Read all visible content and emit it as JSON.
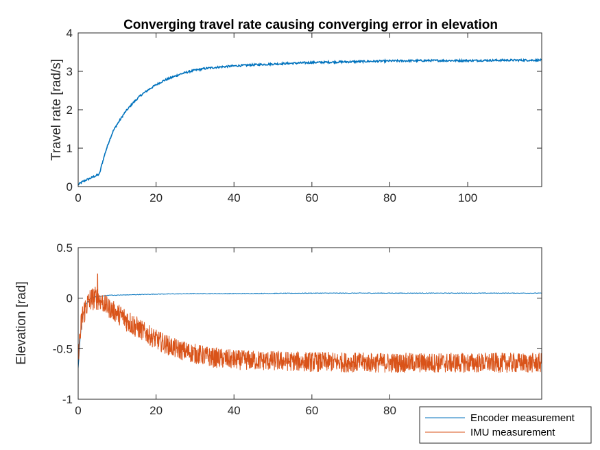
{
  "colors": {
    "series_blue": "#0072BD",
    "series_orange": "#D95319",
    "axis": "#262626",
    "background": "#ffffff"
  },
  "chart_data": [
    {
      "type": "line",
      "title": "Converging travel rate causing converging error in elevation",
      "xlabel": "",
      "ylabel": "Travel rate [rad/s]",
      "xlim": [
        0,
        119
      ],
      "ylim": [
        0,
        4
      ],
      "xticks": [
        0,
        20,
        40,
        60,
        80,
        100
      ],
      "xtick_labels": [
        "0",
        "20",
        "40",
        "60",
        "80",
        "100"
      ],
      "yticks": [
        0,
        1,
        2,
        3,
        4
      ],
      "ytick_labels": [
        "0",
        "1",
        "2",
        "3",
        "4"
      ],
      "grid": false,
      "series": [
        {
          "color": "#0072BD",
          "x": [
            0,
            1,
            2,
            3,
            4,
            5,
            5.5,
            6,
            7,
            8,
            9,
            10,
            12,
            14,
            16,
            18,
            20,
            22,
            24,
            26,
            28,
            30,
            33,
            36,
            40,
            45,
            50,
            55,
            60,
            70,
            80,
            90,
            100,
            110,
            119
          ],
          "y": [
            0.05,
            0.12,
            0.17,
            0.21,
            0.26,
            0.3,
            0.33,
            0.55,
            0.9,
            1.2,
            1.45,
            1.62,
            1.93,
            2.17,
            2.37,
            2.52,
            2.65,
            2.76,
            2.84,
            2.92,
            2.98,
            3.03,
            3.08,
            3.11,
            3.14,
            3.17,
            3.19,
            3.21,
            3.23,
            3.25,
            3.27,
            3.28,
            3.28,
            3.29,
            3.29
          ]
        }
      ]
    },
    {
      "type": "line",
      "title": "",
      "xlabel": "",
      "ylabel": "Elevation [rad]",
      "xlim": [
        0,
        119
      ],
      "ylim": [
        -1,
        0.5
      ],
      "xticks": [
        0,
        20,
        40,
        60,
        80
      ],
      "xtick_labels": [
        "0",
        "20",
        "40",
        "60",
        "80"
      ],
      "yticks": [
        -1,
        -0.5,
        0,
        0.5
      ],
      "ytick_labels": [
        "-1",
        "-0.5",
        "0",
        "0.5"
      ],
      "grid": false,
      "legend_position": "bottom-right",
      "series": [
        {
          "name": "Encoder measurement",
          "color": "#0072BD",
          "x": [
            0,
            0.5,
            1,
            2,
            3,
            4,
            6,
            8,
            10,
            15,
            20,
            30,
            40,
            60,
            80,
            100,
            119
          ],
          "y": [
            -0.7,
            -0.4,
            -0.2,
            -0.06,
            -0.01,
            0.01,
            0.02,
            0.03,
            0.03,
            0.035,
            0.04,
            0.045,
            0.045,
            0.05,
            0.05,
            0.05,
            0.05
          ]
        },
        {
          "name": "IMU measurement",
          "color": "#D95319",
          "x": [
            0,
            1,
            2,
            3,
            4,
            5,
            6,
            7,
            8,
            10,
            12,
            14,
            16,
            18,
            20,
            25,
            30,
            35,
            40,
            50,
            60,
            80,
            100,
            119
          ],
          "y_center": [
            -0.55,
            -0.2,
            -0.08,
            -0.02,
            0.0,
            0.0,
            -0.03,
            -0.07,
            -0.1,
            -0.15,
            -0.2,
            -0.26,
            -0.31,
            -0.36,
            -0.41,
            -0.5,
            -0.55,
            -0.59,
            -0.61,
            -0.62,
            -0.63,
            -0.64,
            -0.64,
            -0.64
          ],
          "y_spread": [
            0.1,
            0.15,
            0.12,
            0.12,
            0.12,
            0.12,
            0.1,
            0.1,
            0.1,
            0.1,
            0.12,
            0.12,
            0.1,
            0.1,
            0.1,
            0.1,
            0.1,
            0.1,
            0.1,
            0.1,
            0.1,
            0.1,
            0.1,
            0.1
          ],
          "peak": {
            "x": 5,
            "y": 0.24
          }
        }
      ]
    }
  ]
}
